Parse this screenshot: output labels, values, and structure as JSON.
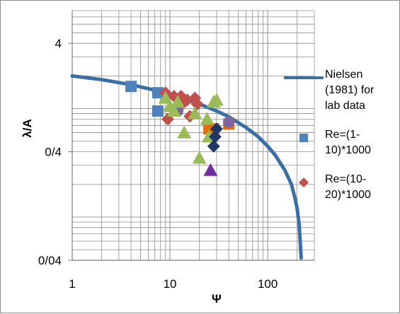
{
  "chart_data": {
    "type": "scatter",
    "xlabel": "Ψ",
    "ylabel": "λ/A",
    "x_scale": "log",
    "y_scale": "log",
    "xlim": [
      1,
      300
    ],
    "ylim": [
      0.04,
      8
    ],
    "x_tick_values": [
      1,
      10,
      100
    ],
    "x_tick_labels": [
      "1",
      "10",
      "100"
    ],
    "y_tick_values": [
      0.04,
      0.4,
      4
    ],
    "y_tick_labels": [
      "0/04",
      "0/4",
      "4"
    ],
    "grid": true,
    "legend_position": "right",
    "legend": [
      {
        "label": "Nielsen (1981) for lab data",
        "lines": [
          "Nielsen",
          "(1981) for",
          "lab data"
        ],
        "marker": "line",
        "color": "#3a6ea5"
      },
      {
        "label": "Re=(1-10)*1000",
        "lines": [
          "Re=(1-",
          "10)*1000"
        ],
        "marker": "square",
        "color": "#4f81bd"
      },
      {
        "label": "Re=(10-20)*1000",
        "lines": [
          "Re=(10-",
          "20)*1000"
        ],
        "marker": "diamond",
        "color": "#c0504d"
      }
    ],
    "curve": {
      "name": "Nielsen (1981) for lab data",
      "color": "#3a6ea5",
      "x": [
        1,
        2,
        4,
        7,
        10,
        15,
        20,
        30,
        40,
        60,
        80,
        100,
        120,
        150,
        175,
        190,
        200,
        210,
        220
      ],
      "y": [
        2.0,
        1.85,
        1.66,
        1.48,
        1.35,
        1.2,
        1.1,
        0.95,
        0.84,
        0.67,
        0.55,
        0.45,
        0.37,
        0.27,
        0.2,
        0.15,
        0.12,
        0.085,
        0.042
      ]
    },
    "series": [
      {
        "name": "Re=(1-10)*1000",
        "marker": "square",
        "color": "#4f81bd",
        "points": [
          [
            4,
            1.6
          ],
          [
            7.5,
            1.4
          ],
          [
            7.5,
            0.95
          ]
        ]
      },
      {
        "name": "Re=(10-20)*1000",
        "marker": "diamond",
        "color": "#c0504d",
        "points": [
          [
            9,
            1.4
          ],
          [
            9.5,
            0.8
          ],
          [
            11,
            1.3
          ],
          [
            12,
            1.0
          ],
          [
            13,
            1.3
          ],
          [
            14,
            1.15
          ],
          [
            15,
            1.2
          ],
          [
            16,
            0.85
          ],
          [
            18,
            1.25
          ],
          [
            19,
            1.1
          ]
        ]
      },
      {
        "marker": "square",
        "color": "#e46c0a",
        "points": [
          [
            25,
            0.65
          ],
          [
            28,
            0.65
          ],
          [
            40,
            0.72
          ]
        ]
      },
      {
        "marker": "circle",
        "color": "#8064a2",
        "points": [
          [
            12,
            0.95
          ],
          [
            40,
            0.75
          ]
        ]
      },
      {
        "marker": "triangle",
        "color": "#9bbb59",
        "points": [
          [
            9,
            1.25
          ],
          [
            10,
            1.05
          ],
          [
            11,
            0.95
          ],
          [
            12,
            1.15
          ],
          [
            14,
            0.6
          ],
          [
            18,
            0.9
          ],
          [
            20,
            0.35
          ],
          [
            24,
            0.8
          ],
          [
            25,
            0.55
          ],
          [
            28,
            1.15
          ],
          [
            30,
            1.2
          ]
        ]
      },
      {
        "marker": "triangle",
        "color": "#7030a0",
        "points": [
          [
            26,
            0.27
          ]
        ]
      },
      {
        "marker": "diamond",
        "color": "#1f3864",
        "points": [
          [
            28,
            0.45
          ],
          [
            29,
            0.55
          ],
          [
            30,
            0.65
          ]
        ]
      }
    ]
  }
}
